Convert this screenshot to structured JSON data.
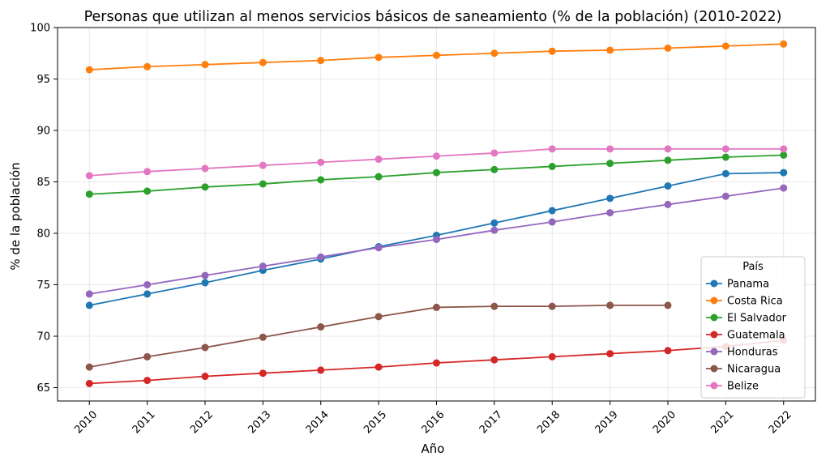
{
  "chart_data": {
    "type": "line",
    "title": "Personas que utilizan al menos servicios básicos de saneamiento (% de la población) (2010-2022)",
    "xlabel": "Año",
    "ylabel": "% de la población",
    "x": [
      2010,
      2011,
      2012,
      2013,
      2014,
      2015,
      2016,
      2017,
      2018,
      2019,
      2020,
      2021,
      2022
    ],
    "ylim": [
      63.7,
      100
    ],
    "yticks": [
      65,
      70,
      75,
      80,
      85,
      90,
      95,
      100
    ],
    "grid": true,
    "legend": {
      "title": "País",
      "placement": "lower-right"
    },
    "series": [
      {
        "name": "Panama",
        "color": "#1f77b4",
        "values": [
          73.0,
          74.1,
          75.2,
          76.4,
          77.5,
          78.7,
          79.8,
          81.0,
          82.2,
          83.4,
          84.6,
          85.8,
          85.9
        ]
      },
      {
        "name": "Costa Rica",
        "color": "#ff7f0e",
        "values": [
          95.9,
          96.2,
          96.4,
          96.6,
          96.8,
          97.1,
          97.3,
          97.5,
          97.7,
          97.8,
          98.0,
          98.2,
          98.4
        ]
      },
      {
        "name": "El Salvador",
        "color": "#2ca02c",
        "values": [
          83.8,
          84.1,
          84.5,
          84.8,
          85.2,
          85.5,
          85.9,
          86.2,
          86.5,
          86.8,
          87.1,
          87.4,
          87.6
        ]
      },
      {
        "name": "Guatemala",
        "color": "#d62728",
        "values": [
          65.4,
          65.7,
          66.1,
          66.4,
          66.7,
          67.0,
          67.4,
          67.7,
          68.0,
          68.3,
          68.6,
          69.0,
          69.6
        ]
      },
      {
        "name": "Honduras",
        "color": "#9467bd",
        "values": [
          74.1,
          75.0,
          75.9,
          76.8,
          77.7,
          78.6,
          79.4,
          80.3,
          81.1,
          82.0,
          82.8,
          83.6,
          84.4
        ]
      },
      {
        "name": "Nicaragua",
        "color": "#8c564b",
        "values": [
          67.0,
          68.0,
          68.9,
          69.9,
          70.9,
          71.9,
          72.8,
          72.9,
          72.9,
          73.0,
          73.0,
          null,
          null
        ]
      },
      {
        "name": "Belize",
        "color": "#e377c2",
        "values": [
          85.6,
          86.0,
          86.3,
          86.6,
          86.9,
          87.2,
          87.5,
          87.8,
          88.2,
          88.2,
          88.2,
          88.2,
          88.2
        ]
      }
    ]
  }
}
